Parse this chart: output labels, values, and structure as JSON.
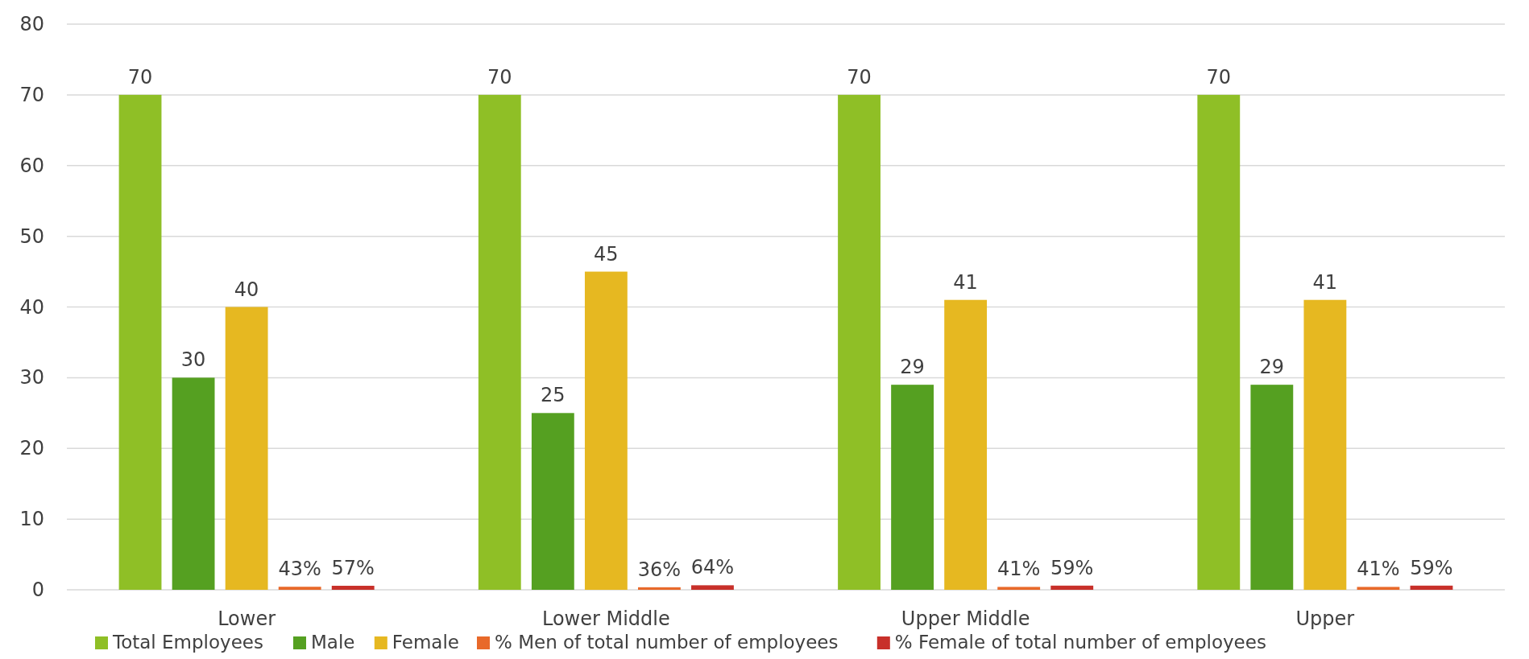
{
  "chart_data": {
    "type": "bar",
    "categories": [
      "Lower",
      "Lower Middle",
      "Upper Middle",
      "Upper"
    ],
    "series": [
      {
        "name": "Total Employees",
        "color": "#8fbf26",
        "values": [
          70,
          70,
          70,
          70
        ],
        "value_labels": [
          "70",
          "70",
          "70",
          "70"
        ]
      },
      {
        "name": "Male",
        "color": "#55a021",
        "values": [
          30,
          25,
          29,
          29
        ],
        "value_labels": [
          "30",
          "25",
          "29",
          "29"
        ]
      },
      {
        "name": "Female",
        "color": "#e6b821",
        "values": [
          40,
          45,
          41,
          41
        ],
        "value_labels": [
          "40",
          "45",
          "41",
          "41"
        ]
      },
      {
        "name": "% Men of total number of employees",
        "color": "#e8692a",
        "values": [
          0.43,
          0.36,
          0.41,
          0.41
        ],
        "value_labels": [
          "43%",
          "36%",
          "41%",
          "41%"
        ]
      },
      {
        "name": "% Female of total number of employees",
        "color": "#c8302a",
        "values": [
          0.57,
          0.64,
          0.59,
          0.59
        ],
        "value_labels": [
          "57%",
          "64%",
          "59%",
          "59%"
        ]
      }
    ],
    "ylim": [
      0,
      80
    ],
    "yticks": [
      0,
      10,
      20,
      30,
      40,
      50,
      60,
      70,
      80
    ],
    "grid": "y",
    "legend": "bottom"
  }
}
